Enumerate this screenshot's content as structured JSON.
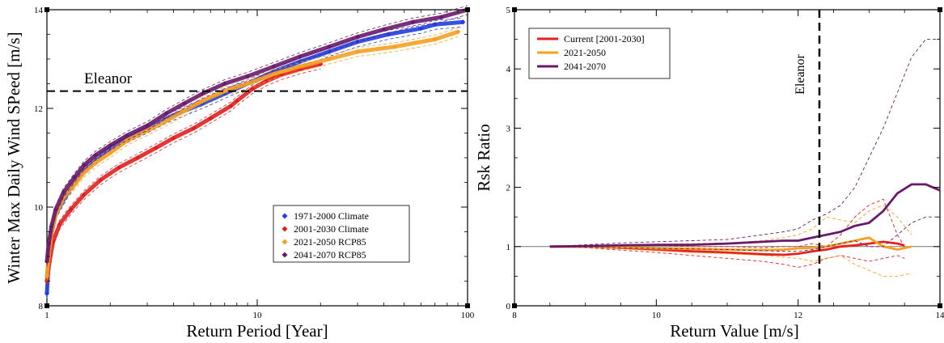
{
  "chart_data": [
    {
      "type": "scatter",
      "xlabel": "Return Period [Year]",
      "ylabel": "Winter Max Daily Wind SPeed [m/s]",
      "xscale": "log",
      "xlim": [
        1,
        100
      ],
      "ylim": [
        8,
        14
      ],
      "xticks": [
        1,
        10,
        100
      ],
      "yticks": [
        8,
        10,
        12,
        14
      ],
      "grid": false,
      "legend_position": "lower-right",
      "annotation": {
        "text": "Eleanor",
        "y": 12.35
      },
      "series": [
        {
          "name": "1971-2000 Climate",
          "color": "#1f3fe0",
          "x": [
            1.0,
            1.02,
            1.05,
            1.1,
            1.2,
            1.35,
            1.5,
            1.7,
            2.0,
            2.4,
            3.0,
            3.7,
            4.5,
            5.5,
            7.0,
            9.0,
            12.0,
            16.0,
            22.0,
            30.0,
            42.0,
            60.0,
            70.0,
            95.0
          ],
          "y": [
            8.25,
            8.9,
            9.45,
            9.85,
            10.15,
            10.5,
            10.75,
            10.95,
            11.2,
            11.4,
            11.6,
            11.8,
            11.95,
            12.1,
            12.3,
            12.5,
            12.75,
            12.95,
            13.15,
            13.35,
            13.5,
            13.62,
            13.7,
            13.75
          ]
        },
        {
          "name": "2001-2030 Climate",
          "color": "#e02020",
          "x": [
            1.0,
            1.03,
            1.07,
            1.15,
            1.3,
            1.5,
            1.8,
            2.2,
            2.7,
            3.3,
            4.0,
            5.0,
            6.0,
            7.5,
            8.0,
            9.5,
            11.0,
            13.0,
            16.0,
            20.0
          ],
          "y": [
            8.5,
            8.9,
            9.3,
            9.65,
            9.95,
            10.25,
            10.55,
            10.8,
            11.0,
            11.2,
            11.4,
            11.6,
            11.8,
            12.05,
            12.15,
            12.4,
            12.55,
            12.68,
            12.8,
            12.9
          ]
        },
        {
          "name": "2021-2050 RCP85",
          "color": "#f5a020",
          "x": [
            1.0,
            1.02,
            1.05,
            1.1,
            1.2,
            1.35,
            1.5,
            1.7,
            2.0,
            2.4,
            3.0,
            3.7,
            4.5,
            5.5,
            7.0,
            9.0,
            12.0,
            16.0,
            22.0,
            30.0,
            45.0,
            70.0,
            90.0
          ],
          "y": [
            8.6,
            9.0,
            9.45,
            9.85,
            10.2,
            10.45,
            10.7,
            10.9,
            11.1,
            11.35,
            11.55,
            11.75,
            11.95,
            12.15,
            12.35,
            12.5,
            12.7,
            12.85,
            13.0,
            13.15,
            13.25,
            13.4,
            13.55
          ]
        },
        {
          "name": "2041-2070 RCP85",
          "color": "#6a1a6a",
          "x": [
            1.0,
            1.02,
            1.05,
            1.1,
            1.2,
            1.35,
            1.5,
            1.7,
            2.0,
            2.4,
            3.0,
            3.7,
            4.5,
            5.5,
            7.0,
            9.0,
            12.0,
            16.0,
            22.0,
            30.0,
            40.0,
            55.0,
            75.0,
            100.0
          ],
          "y": [
            8.9,
            9.25,
            9.6,
            9.95,
            10.3,
            10.6,
            10.85,
            11.05,
            11.25,
            11.45,
            11.65,
            11.9,
            12.1,
            12.3,
            12.5,
            12.65,
            12.85,
            13.05,
            13.25,
            13.45,
            13.6,
            13.75,
            13.85,
            14.0
          ]
        }
      ]
    },
    {
      "type": "line",
      "xlabel": "Return Value [m/s]",
      "ylabel": "Rsk Ratio",
      "xlim": [
        8,
        14
      ],
      "ylim": [
        0,
        5
      ],
      "xticks": [
        8,
        10,
        12,
        14
      ],
      "yticks": [
        0,
        1,
        2,
        3,
        4,
        5
      ],
      "grid": false,
      "legend_position": "top-left",
      "reference_line_y": 1,
      "annotation": {
        "text": "Eleanor",
        "x": 12.3
      },
      "series": [
        {
          "name": "Current [2001-2030]",
          "color": "#e52020",
          "x": [
            8.5,
            9.0,
            9.5,
            10.0,
            10.5,
            11.0,
            11.5,
            11.8,
            12.0,
            12.2,
            12.4,
            12.6,
            12.8,
            13.0,
            13.2,
            13.4,
            13.5
          ],
          "y": [
            1.0,
            1.0,
            0.98,
            0.95,
            0.92,
            0.9,
            0.87,
            0.86,
            0.88,
            0.92,
            0.95,
            1.0,
            1.02,
            1.05,
            1.08,
            1.05,
            1.02
          ],
          "upper": [
            1.0,
            1.02,
            1.02,
            1.02,
            1.0,
            1.0,
            0.98,
            1.0,
            1.0,
            1.05,
            1.0,
            1.2,
            1.5,
            1.7,
            1.8,
            1.2,
            1.0
          ],
          "lower": [
            1.0,
            0.98,
            0.94,
            0.9,
            0.85,
            0.8,
            0.75,
            0.7,
            0.65,
            0.7,
            0.8,
            0.85,
            0.8,
            0.75,
            0.8,
            0.85,
            0.8
          ]
        },
        {
          "name": "2021-2050",
          "color": "#f5a020",
          "x": [
            8.5,
            9.0,
            9.5,
            10.0,
            10.5,
            11.0,
            11.5,
            11.8,
            12.0,
            12.2,
            12.4,
            12.6,
            12.8,
            13.0,
            13.2,
            13.4,
            13.6
          ],
          "y": [
            1.0,
            1.0,
            0.99,
            0.97,
            0.96,
            0.95,
            0.94,
            0.95,
            0.97,
            0.98,
            1.0,
            1.05,
            1.1,
            1.15,
            1.0,
            0.95,
            1.0
          ],
          "upper": [
            1.0,
            1.02,
            1.03,
            1.04,
            1.05,
            1.06,
            1.1,
            1.15,
            1.2,
            1.3,
            1.5,
            1.45,
            1.4,
            1.6,
            1.7,
            1.5,
            1.2
          ],
          "lower": [
            1.0,
            0.98,
            0.96,
            0.93,
            0.9,
            0.88,
            0.85,
            0.82,
            0.8,
            0.75,
            0.8,
            0.85,
            0.7,
            0.6,
            0.5,
            0.5,
            0.55
          ]
        },
        {
          "name": "2041-2070",
          "color": "#6a1a6a",
          "x": [
            8.5,
            9.0,
            9.5,
            10.0,
            10.5,
            11.0,
            11.5,
            11.8,
            12.0,
            12.2,
            12.4,
            12.6,
            12.8,
            13.0,
            13.2,
            13.4,
            13.6,
            13.8,
            14.0
          ],
          "y": [
            1.0,
            1.01,
            1.02,
            1.03,
            1.03,
            1.05,
            1.08,
            1.1,
            1.1,
            1.15,
            1.2,
            1.25,
            1.35,
            1.4,
            1.6,
            1.9,
            2.05,
            2.05,
            1.95
          ],
          "upper": [
            1.0,
            1.03,
            1.06,
            1.08,
            1.1,
            1.12,
            1.2,
            1.25,
            1.3,
            1.45,
            1.55,
            1.7,
            2.0,
            2.5,
            3.0,
            3.6,
            4.2,
            4.5,
            4.5
          ],
          "lower": [
            1.0,
            0.99,
            0.98,
            0.97,
            0.96,
            0.95,
            0.93,
            0.92,
            0.92,
            0.95,
            1.0,
            1.05,
            1.1,
            1.0,
            1.0,
            1.2,
            1.4,
            1.5,
            1.5
          ]
        }
      ]
    }
  ]
}
